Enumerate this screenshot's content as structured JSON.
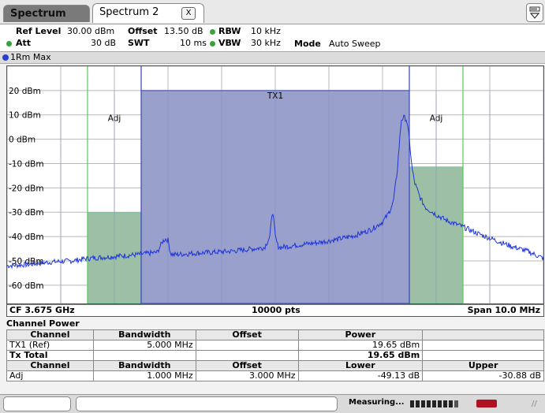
{
  "tabs": [
    {
      "label": "Spectrum",
      "active": false
    },
    {
      "label": "Spectrum 2",
      "active": true
    }
  ],
  "tab_close_label": "X",
  "params": {
    "ref_level_label": "Ref Level",
    "ref_level_value": "30.00 dBm",
    "offset_label": "Offset",
    "offset_value": "13.50 dB",
    "rbw_label": "RBW",
    "rbw_value": "10 kHz",
    "att_label": "Att",
    "att_value": "30 dB",
    "swt_label": "SWT",
    "swt_value": "10 ms",
    "vbw_label": "VBW",
    "vbw_value": "30 kHz",
    "mode_label": "Mode",
    "mode_value": "Auto Sweep"
  },
  "trace_label": "1Rm Max",
  "plot_footer": {
    "center": "CF 3.675 GHz",
    "points": "10000 pts",
    "span": "Span 10.0 MHz"
  },
  "channel_power": {
    "title": "Channel Power",
    "header1": [
      "Channel",
      "Bandwidth",
      "Offset",
      "Power",
      ""
    ],
    "row_tx": [
      "TX1 (Ref)",
      "5.000 MHz",
      "",
      "19.65 dBm",
      ""
    ],
    "row_total": [
      "Tx Total",
      "",
      "",
      "19.65 dBm",
      ""
    ],
    "header2": [
      "Channel",
      "Bandwidth",
      "Offset",
      "Lower",
      "Upper"
    ],
    "row_adj": [
      "Adj",
      "1.000 MHz",
      "3.000 MHz",
      "-49.13 dB",
      "-30.88 dB"
    ]
  },
  "status": {
    "measuring": "Measuring..."
  },
  "chart_data": {
    "type": "line",
    "ylabel_ticks": [
      "20 dBm",
      "10 dBm",
      "0 dBm",
      "-10 dBm",
      "-20 dBm",
      "-30 dBm",
      "-40 dBm",
      "-50 dBm",
      "-60 dBm"
    ],
    "yticks": [
      20,
      10,
      0,
      -10,
      -20,
      -30,
      -40,
      -50,
      -60
    ],
    "ylim": [
      -67.5,
      30
    ],
    "xlim": [
      -5,
      5
    ],
    "x_unit": "MHz offset from CF",
    "grid": true,
    "channels": [
      {
        "label": "TX1",
        "x0": -2.5,
        "x1": 2.5,
        "level": 20,
        "color": "#9aa0cc"
      },
      {
        "label": "Adj",
        "x0": -3.5,
        "x1": -2.5,
        "level": -30.2,
        "color": "#9cbfa5"
      },
      {
        "label": "Adj",
        "x0": 2.5,
        "x1": 3.5,
        "level": -11.4,
        "color": "#9cbfa5"
      }
    ],
    "limit_lines_x": [
      -3.5,
      -2.5,
      2.5,
      3.5
    ],
    "series": [
      {
        "color": "#1f35d9",
        "x": [
          -5,
          -4.6,
          -4.2,
          -3.8,
          -3.5,
          -3.2,
          -2.9,
          -2.6,
          -2.4,
          -2.2,
          -2.1,
          -2.05,
          -2.0,
          -1.95,
          -1.9,
          -1.6,
          -1.2,
          -0.8,
          -0.4,
          -0.2,
          -0.1,
          -0.05,
          0.0,
          0.05,
          0.1,
          0.4,
          0.8,
          1.2,
          1.5,
          1.8,
          2.0,
          2.1,
          2.2,
          2.27,
          2.35,
          2.4,
          2.45,
          2.5,
          2.55,
          2.6,
          2.7,
          2.8,
          3.0,
          3.2,
          3.5,
          3.8,
          4.1,
          4.4,
          4.7,
          5.0
        ],
        "y": [
          -52,
          -51.5,
          -50.5,
          -50,
          -49,
          -48.5,
          -48,
          -47.5,
          -47,
          -46.5,
          -42,
          -41,
          -41.5,
          -47,
          -47.5,
          -47,
          -46.5,
          -46,
          -45,
          -44.5,
          -40,
          -28.5,
          -40,
          -44,
          -44.5,
          -43.5,
          -42.5,
          -41,
          -39.5,
          -37,
          -34,
          -31,
          -26,
          -14,
          8,
          9,
          8,
          0,
          -12,
          -18,
          -24,
          -28,
          -31,
          -33.5,
          -36,
          -39,
          -41.5,
          -44,
          -46,
          -49
        ]
      }
    ]
  }
}
